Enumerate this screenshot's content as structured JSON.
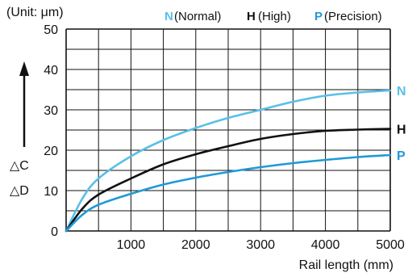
{
  "chart_data": {
    "type": "line",
    "unit_label": "(Unit: μm)",
    "xlabel": "Rail length (mm)",
    "ylabel_lines": [
      "△C",
      "△D"
    ],
    "xlim": [
      0,
      5000
    ],
    "ylim": [
      0,
      50
    ],
    "xticks": [
      0,
      1000,
      2000,
      3000,
      4000,
      5000
    ],
    "yticks": [
      0,
      10,
      20,
      30,
      40,
      50
    ],
    "x_tick_labels": [
      "1000",
      "2000",
      "3000",
      "4000",
      "5000"
    ],
    "y_tick_labels": [
      "0",
      "10",
      "20",
      "30",
      "40",
      "50"
    ],
    "grid": true,
    "legend": [
      {
        "key": "N",
        "desc": "(Normal)",
        "color": "#5bbfe6"
      },
      {
        "key": "H",
        "desc": "(High)",
        "color": "#111111"
      },
      {
        "key": "P",
        "desc": "(Precision)",
        "color": "#1f9ad6"
      }
    ],
    "series": [
      {
        "name": "N",
        "color": "#5bbfe6",
        "x": [
          0,
          250,
          500,
          1000,
          1500,
          2000,
          2500,
          3000,
          3500,
          4000,
          4500,
          5000
        ],
        "y": [
          0,
          8,
          13,
          18.5,
          22.5,
          25.5,
          28,
          30,
          32,
          33.5,
          34.3,
          34.8
        ]
      },
      {
        "name": "H",
        "color": "#111111",
        "x": [
          0,
          250,
          500,
          1000,
          1500,
          2000,
          2500,
          3000,
          3500,
          4000,
          4500,
          5000
        ],
        "y": [
          0,
          5.5,
          9,
          13,
          16.5,
          19,
          21,
          22.8,
          24,
          24.8,
          25.1,
          25.3
        ]
      },
      {
        "name": "P",
        "color": "#1f9ad6",
        "x": [
          0,
          250,
          500,
          1000,
          1500,
          2000,
          2500,
          3000,
          3500,
          4000,
          4500,
          5000
        ],
        "y": [
          0,
          4,
          6.5,
          9.2,
          11.5,
          13.2,
          14.6,
          15.8,
          16.8,
          17.6,
          18.3,
          18.8
        ]
      }
    ]
  }
}
